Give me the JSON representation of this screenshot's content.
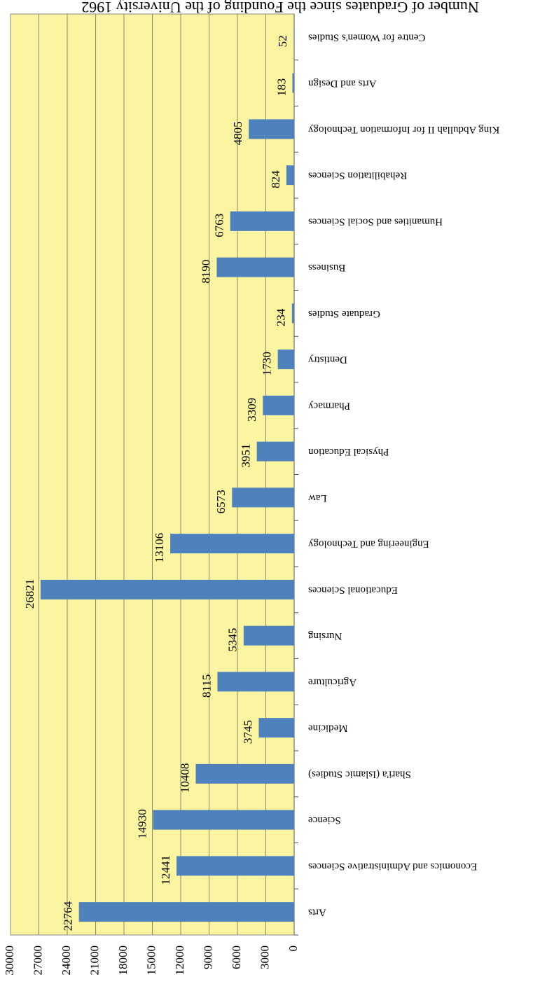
{
  "chart_data": {
    "type": "bar",
    "title": "Number of Graduates since the Founding of the University 1962",
    "categories": [
      "Arts",
      "Economics and Administrative Sciences",
      "Science",
      "Shari'a (Islamic Studies)",
      "Medicine",
      "Agriculture",
      "Nursing",
      "Educational Sciences",
      "Engineering and Technology",
      "Law",
      "Physical Education",
      "Pharmacy",
      "Dentistry",
      "Graduate Studies",
      "Business",
      "Humanities and Social Sciences",
      "Rehabilitation Sciences",
      "King Abdullah II for Information Technology",
      "Arts and Design",
      "Centre for Women's Studies"
    ],
    "values": [
      22764,
      12441,
      14930,
      10408,
      3745,
      8115,
      5345,
      26821,
      13106,
      6573,
      3951,
      3309,
      1730,
      234,
      8190,
      6763,
      824,
      4805,
      183,
      52
    ],
    "color": "#4f81bd",
    "background": "#fbf5a2",
    "ylim": [
      0,
      30000
    ],
    "yticks": [
      0,
      3000,
      6000,
      9000,
      12000,
      15000,
      18000,
      21000,
      24000,
      27000,
      30000
    ],
    "grid": true
  }
}
